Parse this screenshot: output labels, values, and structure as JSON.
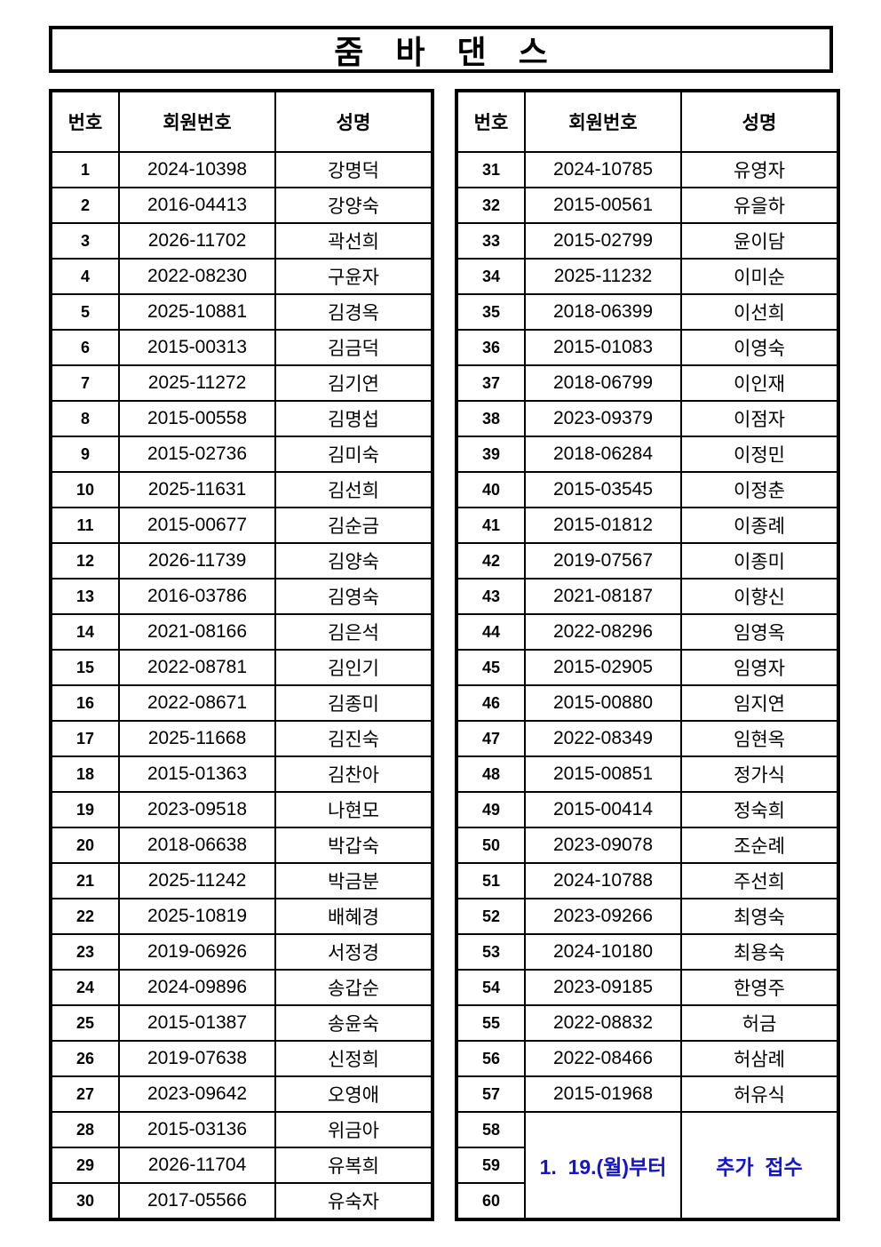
{
  "title": "줌 바 댄 스",
  "columns": [
    "번호",
    "회원번호",
    "성명"
  ],
  "colors": {
    "note_blue": "#1414cc",
    "border_black": "#000000",
    "page_bg": "#ffffff"
  },
  "members_left": [
    {
      "no": "1",
      "member_no": "2024-10398",
      "name": "강명덕"
    },
    {
      "no": "2",
      "member_no": "2016-04413",
      "name": "강양숙"
    },
    {
      "no": "3",
      "member_no": "2026-11702",
      "name": "곽선희"
    },
    {
      "no": "4",
      "member_no": "2022-08230",
      "name": "구윤자"
    },
    {
      "no": "5",
      "member_no": "2025-10881",
      "name": "김경옥"
    },
    {
      "no": "6",
      "member_no": "2015-00313",
      "name": "김금덕"
    },
    {
      "no": "7",
      "member_no": "2025-11272",
      "name": "김기연"
    },
    {
      "no": "8",
      "member_no": "2015-00558",
      "name": "김명섭"
    },
    {
      "no": "9",
      "member_no": "2015-02736",
      "name": "김미숙"
    },
    {
      "no": "10",
      "member_no": "2025-11631",
      "name": "김선희"
    },
    {
      "no": "11",
      "member_no": "2015-00677",
      "name": "김순금"
    },
    {
      "no": "12",
      "member_no": "2026-11739",
      "name": "김양숙"
    },
    {
      "no": "13",
      "member_no": "2016-03786",
      "name": "김영숙"
    },
    {
      "no": "14",
      "member_no": "2021-08166",
      "name": "김은석"
    },
    {
      "no": "15",
      "member_no": "2022-08781",
      "name": "김인기"
    },
    {
      "no": "16",
      "member_no": "2022-08671",
      "name": "김종미"
    },
    {
      "no": "17",
      "member_no": "2025-11668",
      "name": "김진숙"
    },
    {
      "no": "18",
      "member_no": "2015-01363",
      "name": "김찬아"
    },
    {
      "no": "19",
      "member_no": "2023-09518",
      "name": "나현모"
    },
    {
      "no": "20",
      "member_no": "2018-06638",
      "name": "박갑숙"
    },
    {
      "no": "21",
      "member_no": "2025-11242",
      "name": "박금분"
    },
    {
      "no": "22",
      "member_no": "2025-10819",
      "name": "배혜경"
    },
    {
      "no": "23",
      "member_no": "2019-06926",
      "name": "서정경"
    },
    {
      "no": "24",
      "member_no": "2024-09896",
      "name": "송갑순"
    },
    {
      "no": "25",
      "member_no": "2015-01387",
      "name": "송윤숙"
    },
    {
      "no": "26",
      "member_no": "2019-07638",
      "name": "신정희"
    },
    {
      "no": "27",
      "member_no": "2023-09642",
      "name": "오영애"
    },
    {
      "no": "28",
      "member_no": "2015-03136",
      "name": "위금아"
    },
    {
      "no": "29",
      "member_no": "2026-11704",
      "name": "유복희"
    },
    {
      "no": "30",
      "member_no": "2017-05566",
      "name": "유숙자"
    }
  ],
  "members_right": [
    {
      "no": "31",
      "member_no": "2024-10785",
      "name": "유영자"
    },
    {
      "no": "32",
      "member_no": "2015-00561",
      "name": "유을하"
    },
    {
      "no": "33",
      "member_no": "2015-02799",
      "name": "윤이담"
    },
    {
      "no": "34",
      "member_no": "2025-11232",
      "name": "이미순"
    },
    {
      "no": "35",
      "member_no": "2018-06399",
      "name": "이선희"
    },
    {
      "no": "36",
      "member_no": "2015-01083",
      "name": "이영숙"
    },
    {
      "no": "37",
      "member_no": "2018-06799",
      "name": "이인재"
    },
    {
      "no": "38",
      "member_no": "2023-09379",
      "name": "이점자"
    },
    {
      "no": "39",
      "member_no": "2018-06284",
      "name": "이정민"
    },
    {
      "no": "40",
      "member_no": "2015-03545",
      "name": "이정춘"
    },
    {
      "no": "41",
      "member_no": "2015-01812",
      "name": "이종례"
    },
    {
      "no": "42",
      "member_no": "2019-07567",
      "name": "이종미"
    },
    {
      "no": "43",
      "member_no": "2021-08187",
      "name": "이향신"
    },
    {
      "no": "44",
      "member_no": "2022-08296",
      "name": "임영옥"
    },
    {
      "no": "45",
      "member_no": "2015-02905",
      "name": "임영자"
    },
    {
      "no": "46",
      "member_no": "2015-00880",
      "name": "임지연"
    },
    {
      "no": "47",
      "member_no": "2022-08349",
      "name": "임현옥"
    },
    {
      "no": "48",
      "member_no": "2015-00851",
      "name": "정가식"
    },
    {
      "no": "49",
      "member_no": "2015-00414",
      "name": "정숙희"
    },
    {
      "no": "50",
      "member_no": "2023-09078",
      "name": "조순례"
    },
    {
      "no": "51",
      "member_no": "2024-10788",
      "name": "주선희"
    },
    {
      "no": "52",
      "member_no": "2023-09266",
      "name": "최영숙"
    },
    {
      "no": "53",
      "member_no": "2024-10180",
      "name": "최용숙"
    },
    {
      "no": "54",
      "member_no": "2023-09185",
      "name": "한영주"
    },
    {
      "no": "55",
      "member_no": "2022-08832",
      "name": "허금"
    },
    {
      "no": "56",
      "member_no": "2022-08466",
      "name": "허삼례"
    },
    {
      "no": "57",
      "member_no": "2015-01968",
      "name": "허유식"
    }
  ],
  "extra_rows": {
    "numbers": [
      "58",
      "59",
      "60"
    ],
    "member_note": "1.  19.(월)부터",
    "name_note": "추가  접수"
  }
}
